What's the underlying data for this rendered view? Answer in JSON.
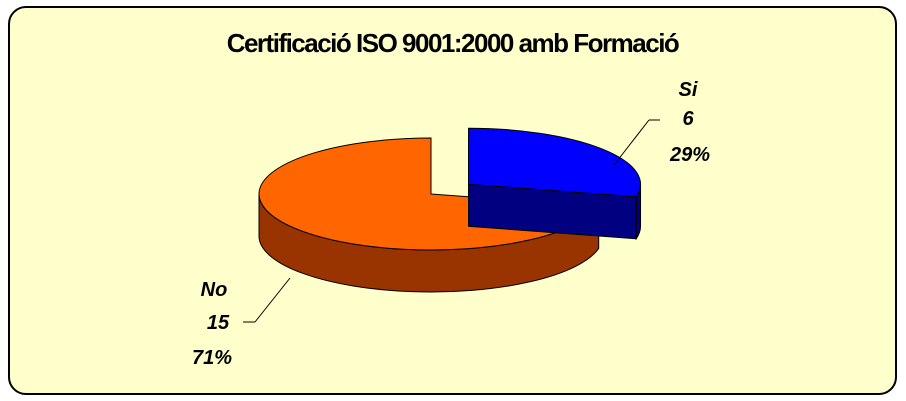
{
  "chart_data": {
    "type": "pie",
    "title": "Certificació ISO 9001:2000 amb Formació",
    "categories": [
      "Si",
      "No"
    ],
    "values": [
      6,
      15
    ],
    "percent_labels": [
      "29%",
      "71%"
    ],
    "value_labels": [
      "6",
      "15"
    ],
    "colors": [
      "#0000ff",
      "#ff6600"
    ],
    "side_colors": [
      "#000080",
      "#993300"
    ],
    "style": "3d-exploded-pie",
    "legend": "none",
    "background": "#ffffcc"
  }
}
